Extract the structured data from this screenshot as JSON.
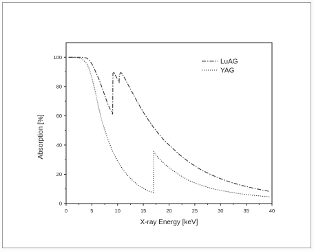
{
  "chart_data": {
    "type": "line",
    "title": "",
    "xlabel": "X-ray Energy [keV]",
    "ylabel": "Absorption [%]",
    "xlim": [
      0,
      40
    ],
    "ylim": [
      0,
      110
    ],
    "xticks": [
      0,
      5,
      10,
      15,
      20,
      25,
      30,
      35,
      40
    ],
    "yticks": [
      0,
      20,
      40,
      60,
      80,
      100
    ],
    "grid": false,
    "legend_position": "top-right",
    "series": [
      {
        "name": "LuAG",
        "style": "dash-dot",
        "color": "#333333",
        "x": [
          0.5,
          2,
          3,
          4,
          4.5,
          5,
          5.5,
          6,
          6.5,
          7,
          7.5,
          8,
          8.5,
          9.05,
          9.1,
          9.3,
          9.6,
          10,
          10.3,
          10.35,
          10.6,
          10.9,
          11.0,
          11.5,
          12,
          13,
          14,
          15,
          16,
          17,
          18,
          19,
          20,
          22,
          24,
          26,
          28,
          30,
          32,
          34,
          36,
          38,
          39.5
        ],
        "y": [
          100,
          100,
          100,
          99.5,
          98,
          95.5,
          92,
          88,
          84,
          79,
          74,
          69,
          65,
          61,
          89,
          90,
          87.5,
          85,
          83,
          88,
          89.5,
          89,
          88,
          85,
          81.5,
          75,
          68.5,
          62.5,
          57,
          52,
          47.5,
          43.5,
          40,
          33.5,
          28,
          23.5,
          20,
          17,
          14.5,
          12.5,
          10.8,
          9.3,
          8.3
        ]
      },
      {
        "name": "YAG",
        "style": "dotted",
        "color": "#333333",
        "x": [
          0.5,
          2,
          3,
          4,
          4.5,
          5,
          5.5,
          6,
          6.5,
          7,
          8,
          9,
          10,
          11,
          12,
          13,
          14,
          15,
          16,
          17.0,
          17.05,
          17.5,
          18,
          19,
          20,
          22,
          24,
          26,
          28,
          30,
          32,
          34,
          36,
          38,
          39.5
        ],
        "y": [
          100,
          100,
          99,
          96,
          92,
          86,
          79,
          71,
          63,
          56,
          45,
          36,
          29,
          23.5,
          19,
          15.5,
          12.5,
          10.5,
          8.5,
          7.5,
          35.5,
          33,
          31,
          27.5,
          24.5,
          19.5,
          15.5,
          12.8,
          10.6,
          9,
          7.7,
          6.6,
          5.8,
          5.1,
          4.6
        ]
      }
    ]
  }
}
